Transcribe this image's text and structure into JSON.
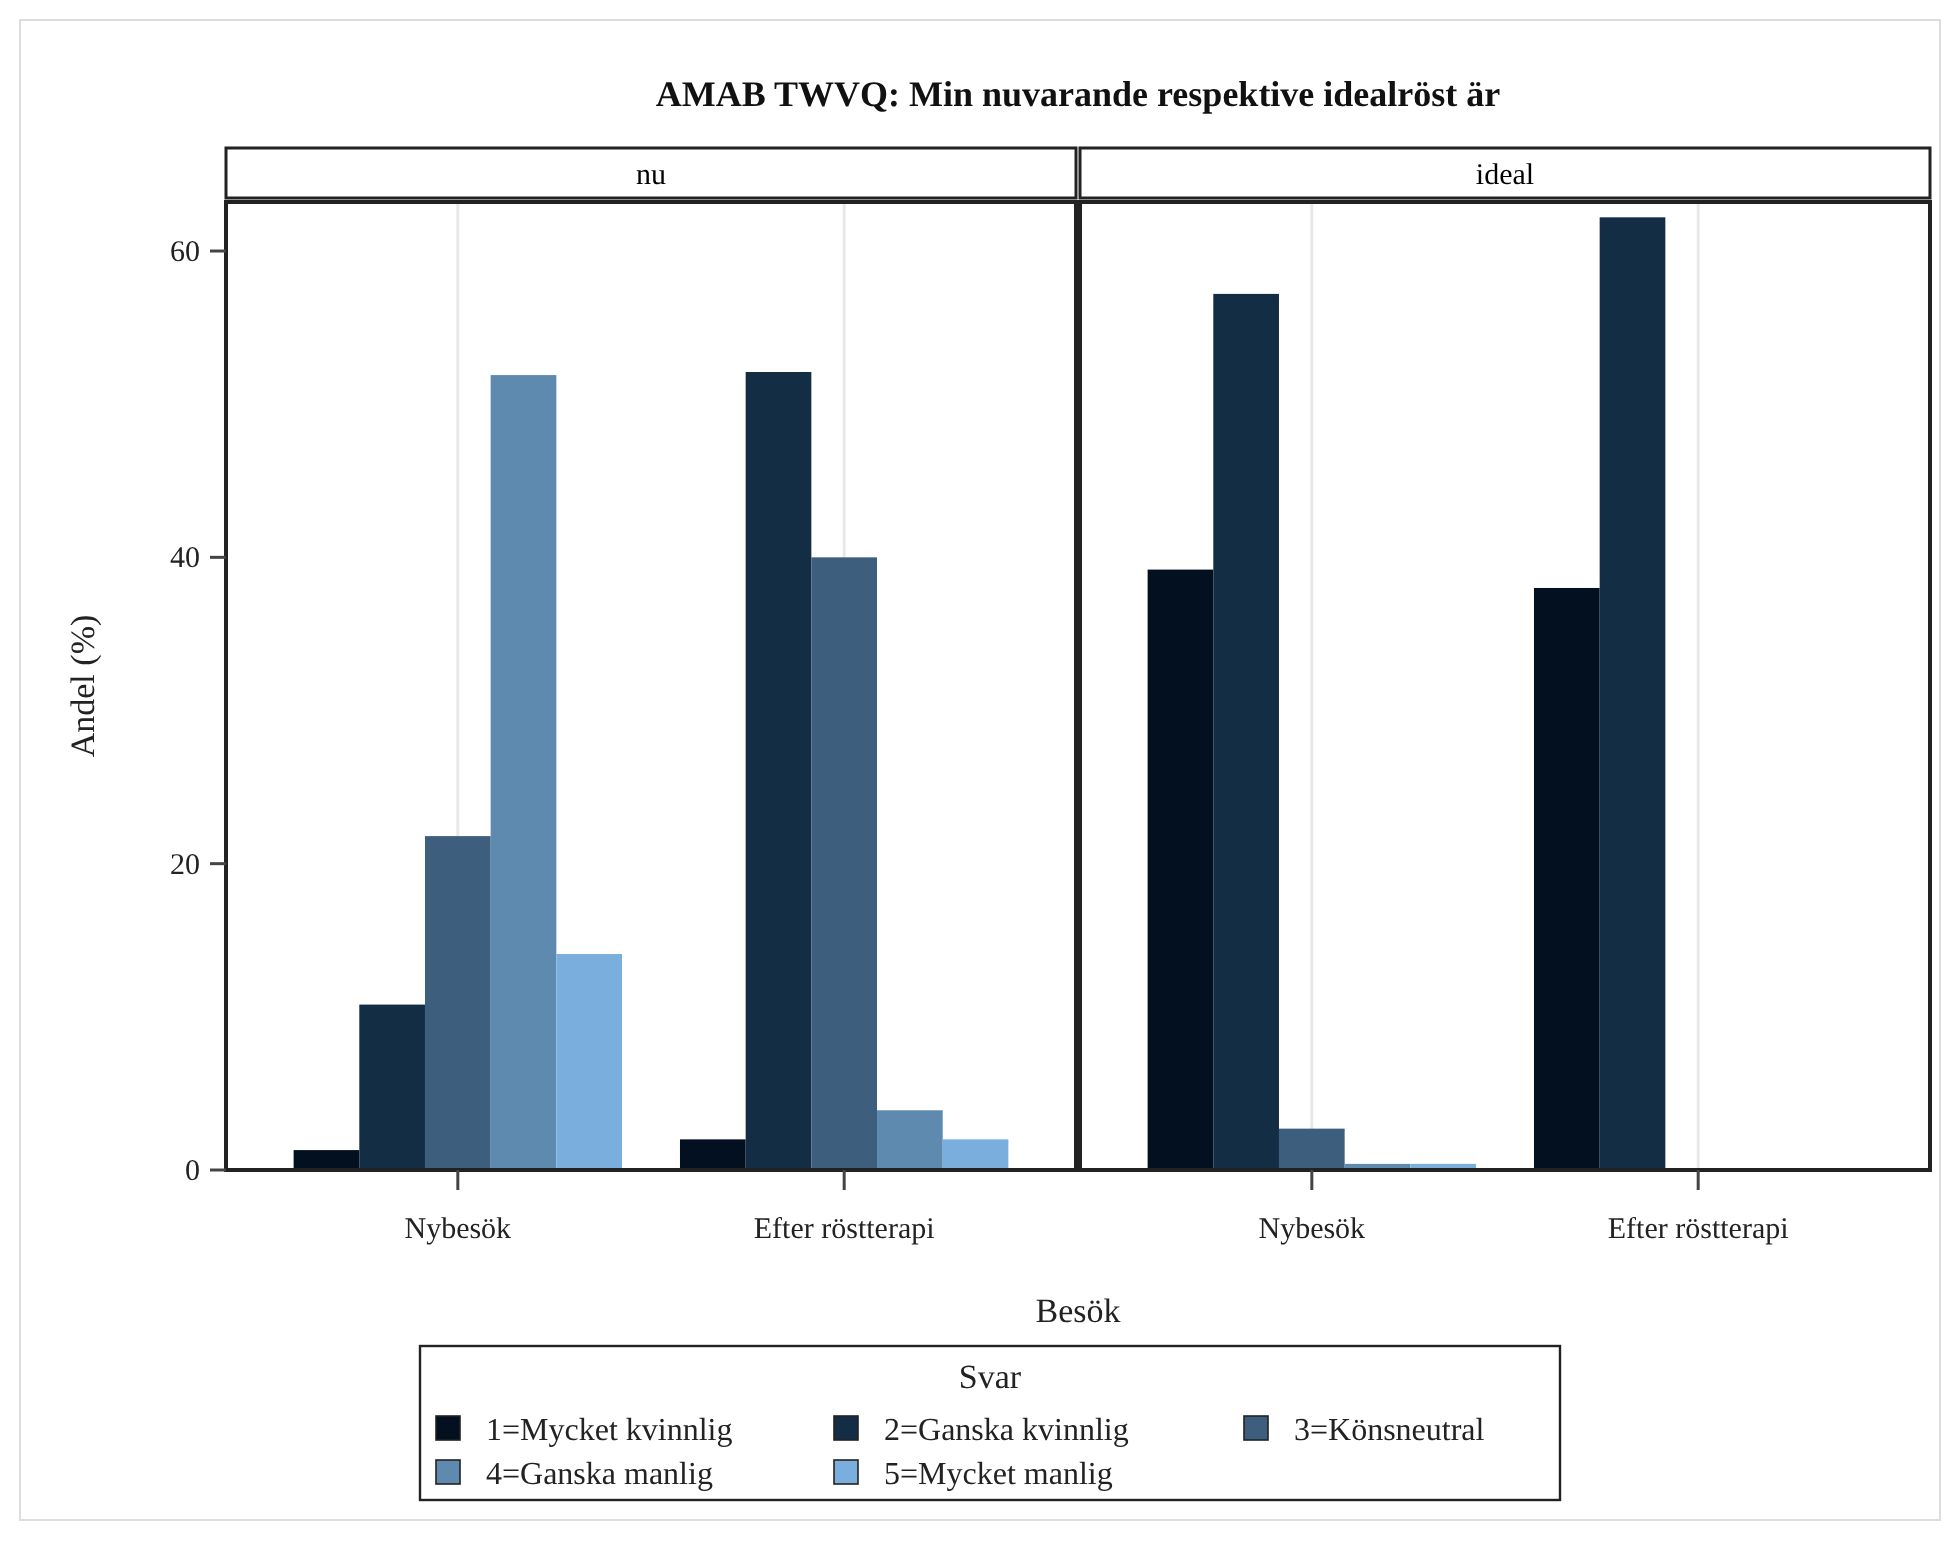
{
  "chart_data": [
    {
      "type": "bar",
      "title": "nu",
      "annotations": [
        "AMAB TWVQ: Min nuvarande respektive idealröst är"
      ],
      "xlabel": "Besök",
      "ylabel": "Andel (%)",
      "legend_title": "Svar",
      "legend": "bottom",
      "grid": "x",
      "categories": [
        "Nybesök",
        "Efter röstterapi"
      ],
      "ylim": [
        0,
        63.2
      ],
      "yticks": [
        0,
        20,
        40,
        60
      ],
      "series": [
        {
          "name": "1=Mycket kvinnlig",
          "color": "#03101f",
          "values": [
            1.3,
            2.0
          ]
        },
        {
          "name": "2=Ganska kvinnlig",
          "color": "#132d45",
          "values": [
            10.8,
            52.1
          ]
        },
        {
          "name": "3=Könsneutral",
          "color": "#3d5f7d",
          "values": [
            21.8,
            40.0
          ]
        },
        {
          "name": "4=Ganska manlig",
          "color": "#5e8ab0",
          "values": [
            51.9,
            3.9
          ]
        },
        {
          "name": "5=Mycket manlig",
          "color": "#7aafdd",
          "values": [
            14.1,
            2.0
          ]
        }
      ]
    },
    {
      "type": "bar",
      "title": "ideal",
      "grid": "x",
      "tick_labels": "x",
      "categories": [
        "Nybesök",
        "Efter röstterapi"
      ],
      "ylim": [
        0,
        63.2
      ],
      "series": [
        {
          "color": "#03101f",
          "values": [
            39.2,
            38.0
          ]
        },
        {
          "color": "#132d45",
          "values": [
            57.2,
            62.2
          ]
        },
        {
          "color": "#3d5f7d",
          "values": [
            2.7,
            0
          ]
        },
        {
          "color": "#5e8ab0",
          "values": [
            0.4,
            0
          ]
        },
        {
          "color": "#7aafdd",
          "values": [
            0.4,
            0
          ]
        }
      ]
    }
  ]
}
